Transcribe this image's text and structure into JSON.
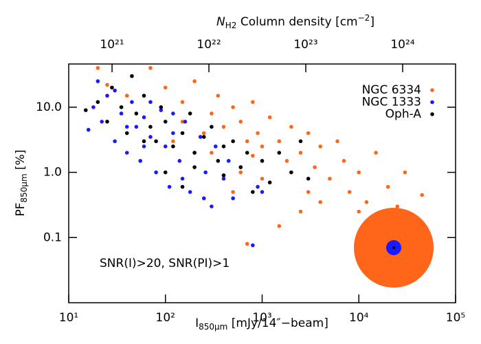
{
  "chart_data": {
    "type": "scatter",
    "xlabel": [
      "I",
      "850μm",
      " [mJy/14″−beam]"
    ],
    "ylabel": [
      "PF",
      "850μm",
      " [%]"
    ],
    "x2label": [
      "N",
      "H2",
      " Column density [cm",
      "−2",
      "]"
    ],
    "annotation": "SNR(I)>20, SNR(PI)>1",
    "xscale": "log",
    "yscale": "log",
    "xlim": [
      10,
      100000
    ],
    "ylim": [
      0.01,
      46
    ],
    "x2lim": [
      3.57e+20,
      3.52e+24
    ],
    "xticks": [
      {
        "value": 10,
        "label": "10¹"
      },
      {
        "value": 100,
        "label": "10²"
      },
      {
        "value": 1000,
        "label": "10³"
      },
      {
        "value": 10000,
        "label": "10⁴"
      },
      {
        "value": 100000,
        "label": "10⁵"
      }
    ],
    "yticks": [
      0.1,
      {
        "value": 1,
        "label": "1.0"
      },
      {
        "value": 10,
        "label": "10.0"
      }
    ],
    "x2ticks": [
      {
        "value": 1e+21,
        "label": "10²¹"
      },
      {
        "value": 1e+22,
        "label": "10²²"
      },
      {
        "value": 1e+23,
        "label": "10²³"
      },
      {
        "value": 1e+24,
        "label": "10²⁴"
      }
    ],
    "legend": "upper right",
    "series": [
      {
        "name": "NGC 6334",
        "color": "#ff661a",
        "x": [
          20,
          25,
          40,
          70,
          100,
          150,
          200,
          300,
          350,
          400,
          500,
          600,
          700,
          800,
          900,
          1000,
          1200,
          1500,
          1800,
          2000,
          2500,
          3000,
          3500,
          4000,
          5000,
          6000,
          7000,
          8000,
          10000,
          12000,
          15000,
          20000,
          25000,
          30000,
          45000,
          700,
          1500,
          2500,
          500,
          400,
          1000,
          3000,
          800,
          300,
          250,
          150,
          120,
          600,
          4000,
          10000
        ],
        "values": [
          40,
          22,
          15,
          40,
          20,
          12,
          25,
          8,
          15,
          5,
          10,
          6,
          3,
          12,
          4,
          2.5,
          7,
          3,
          1.5,
          5,
          2,
          4,
          1.2,
          2.5,
          0.8,
          3,
          1.5,
          0.5,
          1,
          0.35,
          2,
          0.6,
          0.3,
          1,
          0.45,
          0.08,
          0.15,
          0.25,
          0.5,
          0.9,
          0.8,
          0.5,
          1.8,
          2,
          4,
          6,
          3,
          1,
          0.35,
          0.25
        ]
      },
      {
        "name": "NGC 1333",
        "color": "#1a1aff",
        "x": [
          16,
          18,
          20,
          22,
          25,
          30,
          35,
          40,
          45,
          50,
          55,
          60,
          70,
          80,
          90,
          100,
          110,
          120,
          140,
          160,
          180,
          200,
          230,
          260,
          300,
          330,
          400,
          450,
          500,
          600,
          800,
          900,
          1000,
          70,
          30,
          150,
          250,
          120,
          60,
          40
        ],
        "values": [
          4.5,
          10,
          25,
          6,
          15,
          3,
          8,
          2,
          12,
          5,
          1.5,
          7,
          3.5,
          1,
          9,
          2.5,
          0.6,
          4,
          1.5,
          6,
          0.5,
          2,
          3.5,
          1,
          0.3,
          2.5,
          0.8,
          1.5,
          0.4,
          1.2,
          0.076,
          0.6,
          0.5,
          12,
          18,
          0.8,
          0.4,
          8,
          2.5,
          5
        ]
      },
      {
        "name": "Oph-A",
        "color": "#000000",
        "x": [
          15,
          20,
          25,
          28,
          35,
          40,
          50,
          60,
          70,
          80,
          90,
          100,
          120,
          150,
          180,
          200,
          250,
          300,
          350,
          400,
          500,
          600,
          700,
          800,
          1000,
          1200,
          1500,
          2000,
          2500,
          3000,
          200,
          100,
          45,
          150,
          60,
          400
        ],
        "values": [
          9,
          12,
          6,
          20,
          10,
          4,
          8,
          15,
          5,
          3,
          10,
          6,
          2.5,
          4,
          8,
          2,
          3.5,
          5,
          1.5,
          2.5,
          3,
          1.2,
          2,
          0.5,
          1.5,
          0.7,
          2,
          1,
          3,
          0.8,
          1.2,
          1,
          30,
          0.6,
          3,
          0.9
        ]
      }
    ]
  }
}
